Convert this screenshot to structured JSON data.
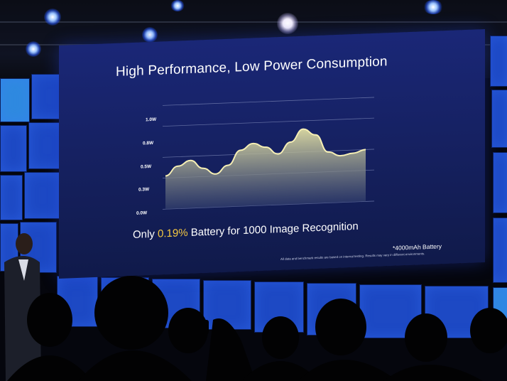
{
  "slide": {
    "title": "High Performance, Low Power Consumption",
    "y_ticks": [
      "1.0W",
      "0.8W",
      "0.5W",
      "0.3W",
      "0.0W"
    ],
    "caption_before": "Only ",
    "caption_highlight": "0.19%",
    "caption_after": " Battery for 1000 Image Recognition",
    "footnote": "*4000mAh Battery",
    "disclaimer": "All data and benchmark results are based on internal testing. Results may vary in different environments."
  },
  "chart_data": {
    "type": "area",
    "ylabel": "",
    "xlabel": "",
    "yticks": [
      "1.0W",
      "0.8W",
      "0.5W",
      "0.3W",
      "0.0W"
    ],
    "ylim": [
      0.0,
      1.0
    ],
    "grid": true,
    "series": [
      {
        "x": [
          0,
          1,
          2,
          3,
          4,
          5,
          6,
          7,
          8,
          9,
          10,
          11,
          12,
          13,
          14,
          15,
          16
        ],
        "values": [
          0.32,
          0.41,
          0.46,
          0.38,
          0.32,
          0.4,
          0.54,
          0.6,
          0.56,
          0.49,
          0.6,
          0.72,
          0.66,
          0.49,
          0.45,
          0.47,
          0.5
        ]
      }
    ]
  },
  "colors": {
    "screen_blue": "#15205e",
    "accent_yellow": "#f3c742",
    "tile_blue": "#1d49c4"
  },
  "icons": {
    "ceiling_light": "spotlight-icon"
  }
}
